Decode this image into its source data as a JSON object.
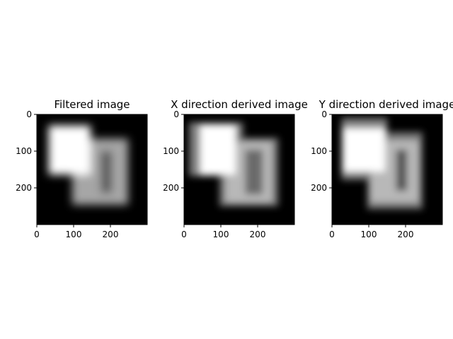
{
  "chart_data": [
    {
      "type": "heatmap",
      "title": "Filtered image",
      "colormap": "gray",
      "xlim": [
        0,
        300
      ],
      "ylim": [
        300,
        0
      ],
      "xticks": [
        0,
        100,
        200
      ],
      "yticks": [
        0,
        100,
        200
      ],
      "blur": 6,
      "shapes": [
        {
          "shape": "rect",
          "x": [
            96,
            248
          ],
          "y": [
            66,
            246
          ],
          "level": 0.65
        },
        {
          "shape": "rect",
          "x": [
            174,
            204
          ],
          "y": [
            100,
            214
          ],
          "level": 0.35
        },
        {
          "shape": "rect",
          "x": [
            32,
            146
          ],
          "y": [
            30,
            164
          ],
          "level": 1.0
        }
      ]
    },
    {
      "type": "heatmap",
      "title": "X direction derived image",
      "colormap": "gray",
      "xlim": [
        0,
        300
      ],
      "ylim": [
        300,
        0
      ],
      "xticks": [
        0,
        100,
        200
      ],
      "yticks": [
        0,
        100,
        200
      ],
      "blur": 5,
      "shapes": [
        {
          "shape": "rect",
          "x": [
            14,
            160
          ],
          "y": [
            22,
            168
          ],
          "level": 0.5
        },
        {
          "shape": "rect",
          "x": [
            96,
            256
          ],
          "y": [
            64,
            250
          ],
          "level": 0.45
        },
        {
          "shape": "rect",
          "x": [
            112,
            240
          ],
          "y": [
            74,
            240
          ],
          "level": 0.72
        },
        {
          "shape": "rect",
          "x": [
            166,
            214
          ],
          "y": [
            96,
            218
          ],
          "level": 0.42
        },
        {
          "shape": "rect",
          "x": [
            44,
            140
          ],
          "y": [
            30,
            164
          ],
          "level": 1.0
        }
      ]
    },
    {
      "type": "heatmap",
      "title": "Y direction derived image",
      "colormap": "gray",
      "xlim": [
        0,
        300
      ],
      "ylim": [
        300,
        0
      ],
      "xticks": [
        0,
        100,
        200
      ],
      "yticks": [
        0,
        100,
        200
      ],
      "blur": 5,
      "shapes": [
        {
          "shape": "rect",
          "x": [
            26,
            150
          ],
          "y": [
            10,
            178
          ],
          "level": 0.5
        },
        {
          "shape": "rect",
          "x": [
            96,
            246
          ],
          "y": [
            48,
            258
          ],
          "level": 0.45
        },
        {
          "shape": "rect",
          "x": [
            104,
            236
          ],
          "y": [
            70,
            240
          ],
          "level": 0.72
        },
        {
          "shape": "rect",
          "x": [
            174,
            204
          ],
          "y": [
            96,
            208
          ],
          "level": 0.32
        },
        {
          "shape": "rect",
          "x": [
            30,
            144
          ],
          "y": [
            38,
            156
          ],
          "level": 1.0
        }
      ]
    }
  ]
}
